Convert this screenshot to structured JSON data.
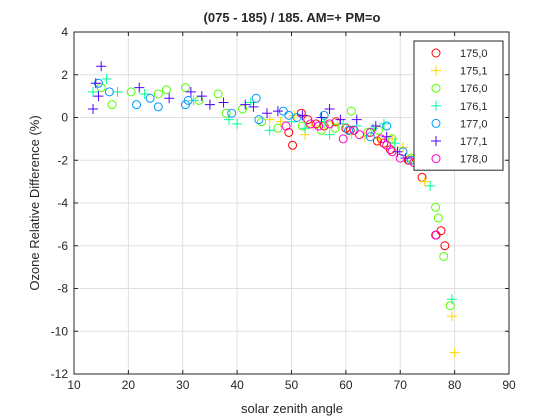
{
  "chart_data": {
    "type": "scatter",
    "title": "(075 - 185) / 185.  AM=+ PM=o",
    "xlabel": "solar zenith angle",
    "ylabel": "Ozone Relative Difference (%)",
    "xlim": [
      10,
      90
    ],
    "ylim": [
      -12,
      4
    ],
    "xticks": [
      10,
      20,
      30,
      40,
      50,
      60,
      70,
      80,
      90
    ],
    "yticks": [
      -12,
      -10,
      -8,
      -6,
      -4,
      -2,
      0,
      2,
      4
    ],
    "grid": true,
    "legend_position": "top-right",
    "series": [
      {
        "name": "175,0",
        "color": "#ff0000",
        "marker": "circle",
        "points": [
          [
            49.5,
            -0.7
          ],
          [
            50.2,
            -1.3
          ],
          [
            51.8,
            0.2
          ],
          [
            53.0,
            -0.1
          ],
          [
            54.5,
            -0.3
          ],
          [
            56.0,
            -0.4
          ],
          [
            58.2,
            -0.2
          ],
          [
            60.0,
            -0.5
          ],
          [
            60.8,
            -0.6
          ],
          [
            65.8,
            -1.1
          ],
          [
            67.0,
            -1.2
          ],
          [
            68.2,
            -1.5
          ],
          [
            71.5,
            -2.0
          ],
          [
            74.0,
            -2.8
          ],
          [
            76.6,
            -5.5
          ],
          [
            77.5,
            -5.3
          ],
          [
            78.2,
            -6.0
          ]
        ]
      },
      {
        "name": "175,1",
        "color": "#ffd700",
        "marker": "plus",
        "points": [
          [
            46.0,
            -0.1
          ],
          [
            48.0,
            -0.2
          ],
          [
            50.5,
            0.1
          ],
          [
            52.5,
            -0.8
          ],
          [
            54.0,
            -0.4
          ],
          [
            56.5,
            -0.2
          ],
          [
            58.5,
            -0.3
          ],
          [
            61.0,
            -0.8
          ],
          [
            63.5,
            -0.9
          ],
          [
            66.0,
            -1.0
          ],
          [
            68.5,
            -1.0
          ],
          [
            70.5,
            -1.4
          ],
          [
            72.5,
            -1.8
          ],
          [
            74.5,
            -3.0
          ],
          [
            79.5,
            -9.3
          ],
          [
            80.0,
            -11.0
          ]
        ]
      },
      {
        "name": "176,0",
        "color": "#55ff00",
        "marker": "circle",
        "points": [
          [
            15.0,
            1.4
          ],
          [
            17.0,
            0.6
          ],
          [
            20.5,
            1.2
          ],
          [
            25.5,
            1.1
          ],
          [
            27.0,
            1.3
          ],
          [
            30.5,
            1.4
          ],
          [
            33.0,
            0.8
          ],
          [
            36.5,
            1.1
          ],
          [
            38.0,
            0.2
          ],
          [
            41.0,
            0.4
          ],
          [
            44.5,
            -0.2
          ],
          [
            47.5,
            -0.5
          ],
          [
            52.0,
            -0.4
          ],
          [
            55.5,
            -0.6
          ],
          [
            58.0,
            -0.5
          ],
          [
            61.0,
            0.3
          ],
          [
            64.0,
            -0.7
          ],
          [
            66.0,
            -0.6
          ],
          [
            68.5,
            -1.0
          ],
          [
            72.0,
            -1.9
          ],
          [
            76.5,
            -4.2
          ],
          [
            77.0,
            -4.7
          ],
          [
            78.0,
            -6.5
          ],
          [
            79.2,
            -8.8
          ]
        ]
      },
      {
        "name": "176,1",
        "color": "#00ff99",
        "marker": "plus",
        "points": [
          [
            13.5,
            1.2
          ],
          [
            16.0,
            1.8
          ],
          [
            18.0,
            1.2
          ],
          [
            23.0,
            1.1
          ],
          [
            32.0,
            0.8
          ],
          [
            35.0,
            0.6
          ],
          [
            38.5,
            -0.1
          ],
          [
            40.0,
            -0.3
          ],
          [
            42.5,
            0.7
          ],
          [
            46.0,
            -0.6
          ],
          [
            50.0,
            -0.2
          ],
          [
            52.5,
            -0.5
          ],
          [
            56.0,
            -0.2
          ],
          [
            57.0,
            -0.8
          ],
          [
            59.5,
            -0.3
          ],
          [
            62.0,
            -0.4
          ],
          [
            65.0,
            -0.5
          ],
          [
            67.0,
            -0.3
          ],
          [
            69.0,
            -1.2
          ],
          [
            73.5,
            -1.7
          ],
          [
            75.5,
            -3.2
          ],
          [
            79.5,
            -8.5
          ]
        ]
      },
      {
        "name": "177,0",
        "color": "#0099ff",
        "marker": "circle",
        "points": [
          [
            14.5,
            1.6
          ],
          [
            16.5,
            1.2
          ],
          [
            21.5,
            0.6
          ],
          [
            24.0,
            0.9
          ],
          [
            25.5,
            0.5
          ],
          [
            31.0,
            0.8
          ],
          [
            30.5,
            0.6
          ],
          [
            39.0,
            0.2
          ],
          [
            43.5,
            0.9
          ],
          [
            44.0,
            -0.1
          ],
          [
            48.5,
            0.3
          ],
          [
            49.5,
            0.1
          ],
          [
            51.0,
            0.0
          ],
          [
            56.0,
            0.1
          ],
          [
            60.5,
            -0.6
          ],
          [
            64.5,
            -0.9
          ],
          [
            67.5,
            -0.4
          ],
          [
            70.5,
            -1.6
          ],
          [
            72.0,
            -2.0
          ]
        ]
      },
      {
        "name": "177,1",
        "color": "#5500ff",
        "marker": "plus",
        "points": [
          [
            13.5,
            0.4
          ],
          [
            14.0,
            1.6
          ],
          [
            14.5,
            1.0
          ],
          [
            15.0,
            2.4
          ],
          [
            22.0,
            1.4
          ],
          [
            27.5,
            0.9
          ],
          [
            31.5,
            1.2
          ],
          [
            33.5,
            1.0
          ],
          [
            35.0,
            0.6
          ],
          [
            37.5,
            0.7
          ],
          [
            41.5,
            0.6
          ],
          [
            43.0,
            0.5
          ],
          [
            45.5,
            0.2
          ],
          [
            47.5,
            0.3
          ],
          [
            52.0,
            0.1
          ],
          [
            55.5,
            0.0
          ],
          [
            57.0,
            0.4
          ],
          [
            59.0,
            -0.1
          ],
          [
            62.0,
            -0.1
          ],
          [
            65.5,
            -0.4
          ],
          [
            67.5,
            -0.9
          ],
          [
            69.5,
            -1.6
          ],
          [
            71.0,
            -1.9
          ]
        ]
      },
      {
        "name": "178,0",
        "color": "#ff00cc",
        "marker": "circle",
        "points": [
          [
            49.0,
            -0.4
          ],
          [
            53.5,
            -0.3
          ],
          [
            55.0,
            -0.4
          ],
          [
            57.0,
            -0.3
          ],
          [
            59.5,
            -1.0
          ],
          [
            61.5,
            -0.6
          ],
          [
            62.5,
            -0.8
          ],
          [
            64.5,
            -0.7
          ],
          [
            66.5,
            -1.0
          ],
          [
            67.5,
            -1.3
          ],
          [
            68.5,
            -1.6
          ],
          [
            70.0,
            -1.9
          ],
          [
            72.5,
            -2.1
          ],
          [
            76.5,
            -5.5
          ]
        ]
      }
    ]
  }
}
